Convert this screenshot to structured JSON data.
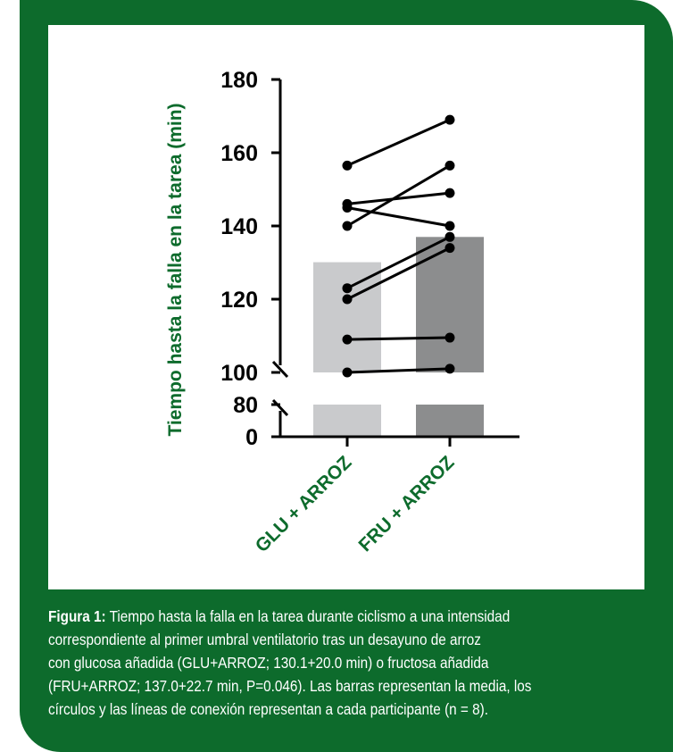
{
  "chart_data": {
    "type": "bar",
    "ylabel": "Tiempo hasta la falla en la tarea (min)",
    "categories": [
      "GLU + ARROZ",
      "FRU + ARROZ"
    ],
    "values": [
      130.1,
      137.0
    ],
    "bar_colors": [
      "#c9cacc",
      "#8c8d8e"
    ],
    "yticks": [
      0,
      80,
      100,
      120,
      140,
      160,
      180
    ],
    "ylim_lower": [
      0,
      80
    ],
    "ylim_upper": [
      100,
      180
    ],
    "axis_break": true,
    "participants": [
      [
        156.5,
        169.0
      ],
      [
        146.0,
        149.0
      ],
      [
        145.0,
        140.0
      ],
      [
        140.0,
        156.5
      ],
      [
        123.0,
        137.0
      ],
      [
        120.0,
        134.0
      ],
      [
        109.0,
        109.5
      ],
      [
        100.0,
        101.0
      ]
    ],
    "label_color": "#0d6b2c"
  },
  "caption": {
    "prefix": "Figura 1:",
    "lines": [
      " Tiempo hasta la falla en la tarea durante ciclismo a una intensidad",
      "correspondiente al primer umbral ventilatorio tras un desayuno de arroz",
      "con glucosa añadida (GLU+ARROZ; 130.1+20.0 min) o fructosa añadida",
      "(FRU+ARROZ; 137.0+22.7 min, P=0.046). Las barras representan la media, los",
      "círculos y las líneas de conexión representan a cada participante (n = 8)."
    ]
  },
  "colors": {
    "frame_green": "#0d6b2c"
  }
}
